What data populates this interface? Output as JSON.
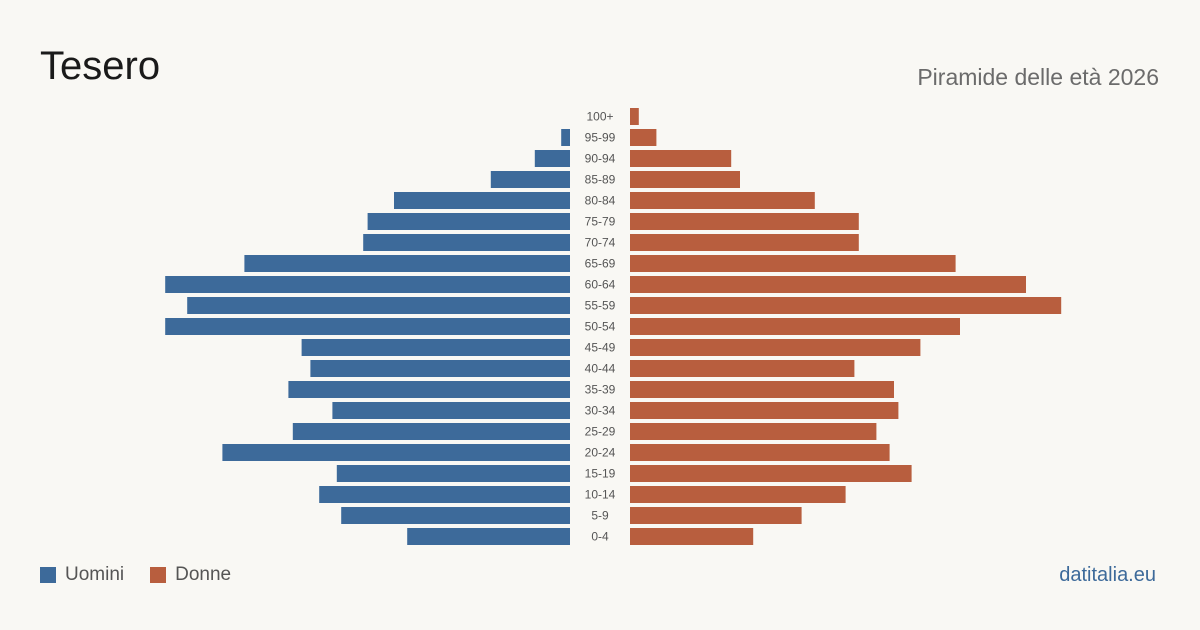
{
  "header": {
    "title": "Tesero",
    "subtitle": "Piramide delle età 2026"
  },
  "legend": {
    "men_label": "Uomini",
    "women_label": "Donne"
  },
  "footer": {
    "source": "datitalia.eu"
  },
  "colors": {
    "men": "#3d6a9a",
    "women": "#b85e3e"
  },
  "chart_data": {
    "type": "bar",
    "orientation": "horizontal",
    "categories": [
      "100+",
      "95-99",
      "90-94",
      "85-89",
      "80-84",
      "75-79",
      "70-74",
      "65-69",
      "60-64",
      "55-59",
      "50-54",
      "45-49",
      "40-44",
      "35-39",
      "30-34",
      "25-29",
      "20-24",
      "15-19",
      "10-14",
      "5-9",
      "0-4"
    ],
    "series": [
      {
        "name": "Uomini",
        "values": [
          0,
          2,
          8,
          18,
          40,
          46,
          47,
          74,
          92,
          87,
          92,
          61,
          59,
          64,
          54,
          63,
          79,
          53,
          57,
          52,
          37
        ]
      },
      {
        "name": "Donne",
        "values": [
          2,
          6,
          23,
          25,
          42,
          52,
          52,
          74,
          90,
          98,
          75,
          66,
          51,
          60,
          61,
          56,
          59,
          64,
          49,
          39,
          28
        ]
      }
    ],
    "xlim": [
      0,
      100
    ],
    "grid": false,
    "legend_position": "bottom-left"
  }
}
